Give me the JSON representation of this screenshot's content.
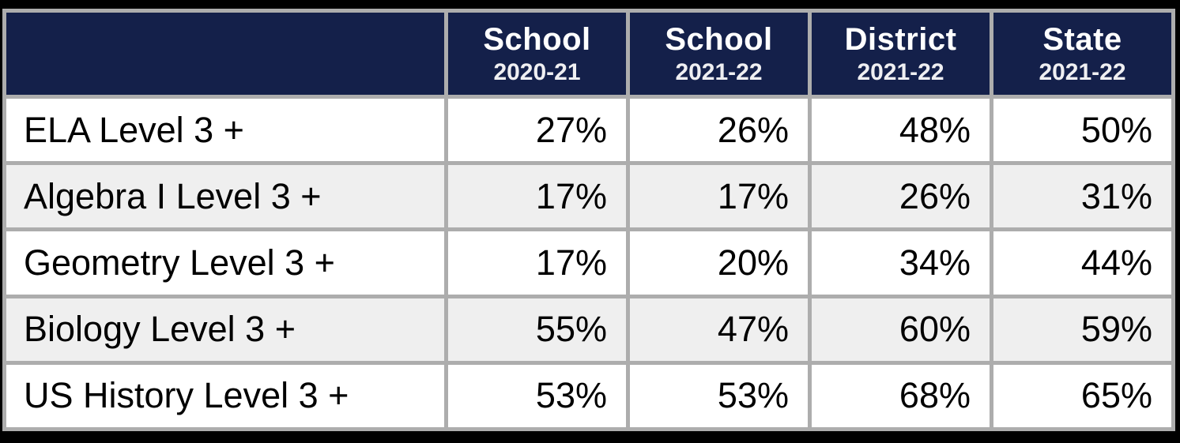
{
  "table": {
    "columns": [
      {
        "line1": "School",
        "line2": "2020-21"
      },
      {
        "line1": "School",
        "line2": "2021-22"
      },
      {
        "line1": "District",
        "line2": "2021-22"
      },
      {
        "line1": "State",
        "line2": "2021-22"
      }
    ],
    "rows": [
      {
        "label": "ELA Level 3 +",
        "values": [
          "27%",
          "26%",
          "48%",
          "50%"
        ]
      },
      {
        "label": "Algebra I Level 3 +",
        "values": [
          "17%",
          "17%",
          "26%",
          "31%"
        ]
      },
      {
        "label": "Geometry Level 3 +",
        "values": [
          "17%",
          "20%",
          "34%",
          "44%"
        ]
      },
      {
        "label": "Biology Level 3 +",
        "values": [
          "55%",
          "47%",
          "60%",
          "59%"
        ]
      },
      {
        "label": "US History Level 3 +",
        "values": [
          "53%",
          "53%",
          "68%",
          "65%"
        ]
      }
    ]
  },
  "colors": {
    "header_bg": "#14204A",
    "header_text": "#FFFFFF",
    "grid_border": "#ADADAD",
    "row_bg": "#FFFFFF",
    "row_alt_bg": "#EFEFEF",
    "body_text": "#000000",
    "outer_frame": "#000000"
  },
  "chart_data": {
    "type": "table",
    "columns": [
      "",
      "School 2020-21",
      "School 2021-22",
      "District 2021-22",
      "State 2021-22"
    ],
    "rows": [
      [
        "ELA Level 3 +",
        27,
        26,
        48,
        50
      ],
      [
        "Algebra I Level 3 +",
        17,
        17,
        26,
        31
      ],
      [
        "Geometry Level 3 +",
        17,
        20,
        34,
        44
      ],
      [
        "Biology Level 3 +",
        55,
        47,
        60,
        59
      ],
      [
        "US History Level 3 +",
        53,
        53,
        68,
        65
      ]
    ],
    "unit": "%",
    "notes": "Assessment proficiency comparison table; navy header row, alternating white/gray data rows, gray gridlines, black outer frame"
  }
}
